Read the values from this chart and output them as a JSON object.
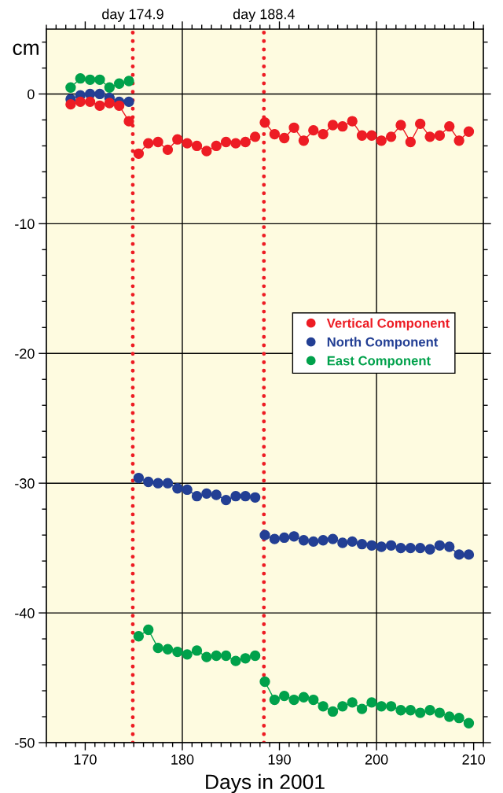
{
  "chart_data": {
    "type": "line",
    "xlabel": "Days in 2001",
    "ylabel": "cm",
    "xlim": [
      166,
      211
    ],
    "xticks": [
      170,
      180,
      190,
      200,
      210
    ],
    "ylim": [
      -50,
      5
    ],
    "yticks": [
      -50,
      -40,
      -30,
      -20,
      -10,
      0
    ],
    "grid": "y",
    "legend": "center right",
    "marker": "circle",
    "line_style": "solid",
    "x": [
      168.5,
      169.5,
      170.5,
      171.5,
      172.5,
      173.5,
      174.5,
      174.9,
      175.5,
      176.5,
      177.5,
      178.5,
      179.5,
      180.5,
      181.5,
      182.5,
      183.5,
      184.5,
      185.5,
      186.5,
      187.5,
      188.4,
      188.5,
      189.5,
      190.5,
      191.5,
      192.5,
      193.5,
      194.5,
      195.5,
      196.5,
      197.5,
      198.5,
      199.5,
      200.5,
      201.5,
      202.5,
      203.5,
      204.5,
      205.5,
      206.5,
      207.5,
      208.5,
      209.5
    ],
    "series": [
      {
        "name": "Vertical Component",
        "color": "#ed1c24",
        "values": [
          -0.8,
          -0.6,
          -0.6,
          -0.9,
          -0.7,
          -0.9,
          -2.1,
          null,
          -4.6,
          -3.8,
          -3.7,
          -4.3,
          -3.5,
          -3.8,
          -4.0,
          -4.4,
          -4.0,
          -3.7,
          -3.8,
          -3.7,
          -3.3,
          null,
          -2.2,
          -3.1,
          -3.4,
          -2.6,
          -3.6,
          -2.8,
          -3.1,
          -2.4,
          -2.5,
          -2.1,
          -3.2,
          -3.2,
          -3.6,
          -3.3,
          -2.4,
          -3.7,
          -2.3,
          -3.3,
          -3.2,
          -2.5,
          -3.6,
          -2.9
        ]
      },
      {
        "name": "North Component",
        "color": "#233f94",
        "values": [
          -0.4,
          -0.1,
          0.0,
          0.0,
          -0.3,
          -0.6,
          -0.6,
          null,
          -29.6,
          -29.9,
          -30.0,
          -30.0,
          -30.4,
          -30.5,
          -31.0,
          -30.8,
          -30.9,
          -31.3,
          -31.0,
          -31.0,
          -31.1,
          null,
          -34.0,
          -34.3,
          -34.2,
          -34.1,
          -34.4,
          -34.5,
          -34.4,
          -34.3,
          -34.6,
          -34.5,
          -34.7,
          -34.8,
          -34.9,
          -34.8,
          -35.0,
          -35.0,
          -35.0,
          -35.1,
          -34.8,
          -34.9,
          -35.5,
          -35.5
        ]
      },
      {
        "name": "East Component",
        "color": "#00a14b",
        "values": [
          0.5,
          1.2,
          1.1,
          1.1,
          0.5,
          0.8,
          1.0,
          null,
          -41.8,
          -41.3,
          -42.7,
          -42.8,
          -43.0,
          -43.2,
          -42.9,
          -43.4,
          -43.3,
          -43.3,
          -43.7,
          -43.5,
          -43.3,
          null,
          -45.3,
          -46.7,
          -46.4,
          -46.7,
          -46.5,
          -46.7,
          -47.2,
          -47.6,
          -47.2,
          -46.9,
          -47.4,
          -46.9,
          -47.2,
          -47.2,
          -47.5,
          -47.5,
          -47.7,
          -47.5,
          -47.7,
          -48.0,
          -48.1,
          -48.5
        ]
      }
    ],
    "ref_lines": [
      {
        "axis": "x",
        "value": 174.9,
        "label": "day 174.9",
        "color": "#ed1c24",
        "line_style": "dotted"
      },
      {
        "axis": "x",
        "value": 188.4,
        "label": "day 188.4",
        "color": "#ed1c24",
        "line_style": "dotted"
      },
      {
        "axis": "x",
        "value": 180,
        "label": null,
        "color": "#000000",
        "line_style": "solid"
      },
      {
        "axis": "x",
        "value": 200,
        "label": null,
        "color": "#000000",
        "line_style": "solid"
      }
    ]
  }
}
